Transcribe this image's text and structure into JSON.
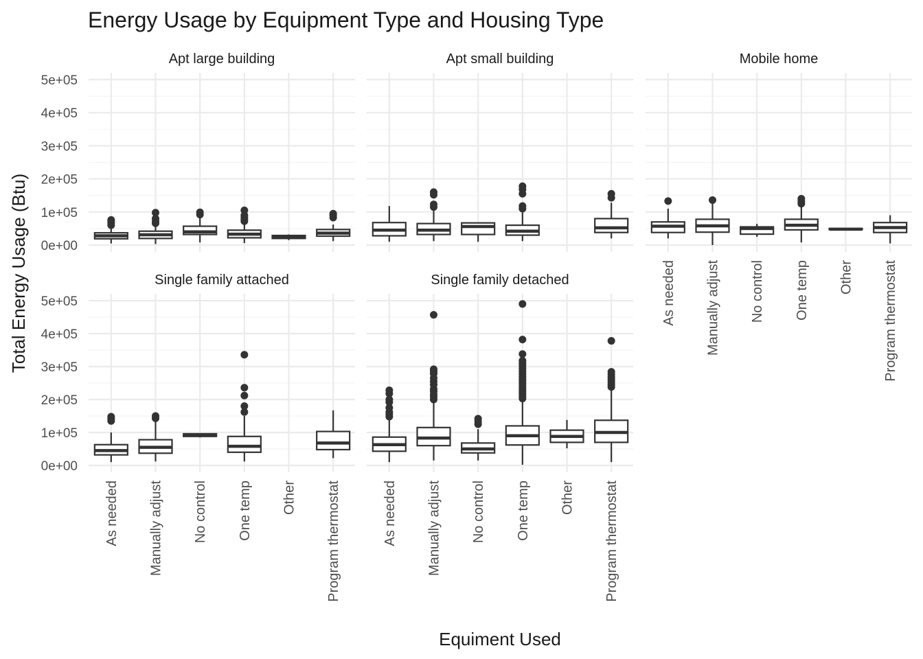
{
  "chart_data": {
    "type": "boxplot",
    "title": "Energy Usage by Equipment Type and Housing Type",
    "xlabel": "Equiment Used",
    "ylabel": "Total Energy Usage (Btu)",
    "ylim": [
      0,
      500000
    ],
    "y_ticks": [
      {
        "value": 0,
        "label": "0e+00"
      },
      {
        "value": 100000,
        "label": "1e+05"
      },
      {
        "value": 200000,
        "label": "2e+05"
      },
      {
        "value": 300000,
        "label": "3e+05"
      },
      {
        "value": 400000,
        "label": "4e+05"
      },
      {
        "value": 500000,
        "label": "5e+05"
      }
    ],
    "categories": [
      "As needed",
      "Manually adjust",
      "No control",
      "One temp",
      "Other",
      "Program thermostat"
    ],
    "grid": true,
    "theme": "minimal",
    "colors": {
      "box_stroke": "#333333",
      "box_fill": "#ffffff",
      "grid_major": "#ebebeb",
      "grid_minor": "#f4f4f4",
      "text": "#1a1a1a",
      "axis_text": "#4d4d4d"
    },
    "facets": [
      {
        "name": "Apt large building",
        "boxes": [
          {
            "category": "As needed",
            "min": 5000,
            "q1": 19000,
            "median": 28000,
            "q3": 37000,
            "max": 53000,
            "outliers": [
              60000,
              66000,
              72000,
              76000
            ]
          },
          {
            "category": "Manually adjust",
            "min": 3000,
            "q1": 20000,
            "median": 31000,
            "q3": 42000,
            "max": 57000,
            "outliers": [
              66000,
              72000,
              80000,
              98000
            ]
          },
          {
            "category": "No control",
            "min": 8000,
            "q1": 32000,
            "median": 40000,
            "q3": 57000,
            "max": 85000,
            "outliers": [
              92000,
              99000
            ]
          },
          {
            "category": "One temp",
            "min": 6000,
            "q1": 22000,
            "median": 33000,
            "q3": 45000,
            "max": 65000,
            "outliers": [
              72000,
              78000,
              84000,
              90000,
              105000
            ]
          },
          {
            "category": "Other",
            "min": 15000,
            "q1": 20000,
            "median": 25000,
            "q3": 29000,
            "max": 32000,
            "outliers": []
          },
          {
            "category": "Program thermostat",
            "min": 12000,
            "q1": 27000,
            "median": 36000,
            "q3": 47000,
            "max": 62000,
            "outliers": [
              83000,
              90000,
              95000
            ]
          }
        ]
      },
      {
        "name": "Apt small building",
        "boxes": [
          {
            "category": "As needed",
            "min": 10000,
            "q1": 28000,
            "median": 45000,
            "q3": 68000,
            "max": 118000,
            "outliers": []
          },
          {
            "category": "Manually adjust",
            "min": 12000,
            "q1": 32000,
            "median": 45000,
            "q3": 65000,
            "max": 108000,
            "outliers": [
              115000,
              123000,
              152000,
              160000
            ]
          },
          {
            "category": "No control",
            "min": 10000,
            "q1": 32000,
            "median": 56000,
            "q3": 67000,
            "max": 68000,
            "outliers": []
          },
          {
            "category": "One temp",
            "min": 12000,
            "q1": 30000,
            "median": 42000,
            "q3": 60000,
            "max": 100000,
            "outliers": [
              110000,
              118000,
              155000,
              168000,
              178000
            ]
          },
          {
            "category": "Other",
            "min": null,
            "q1": null,
            "median": null,
            "q3": null,
            "max": null,
            "outliers": []
          },
          {
            "category": "Program thermostat",
            "min": 20000,
            "q1": 38000,
            "median": 52000,
            "q3": 80000,
            "max": 128000,
            "outliers": [
              143000,
              155000
            ]
          }
        ]
      },
      {
        "name": "Mobile home",
        "boxes": [
          {
            "category": "As needed",
            "min": 20000,
            "q1": 38000,
            "median": 57000,
            "q3": 70000,
            "max": 110000,
            "outliers": [
              133000
            ]
          },
          {
            "category": "Manually adjust",
            "min": 0,
            "q1": 39000,
            "median": 58000,
            "q3": 78000,
            "max": 128000,
            "outliers": [
              136000
            ]
          },
          {
            "category": "No control",
            "min": 25000,
            "q1": 33000,
            "median": 50000,
            "q3": 55000,
            "max": 64000,
            "outliers": []
          },
          {
            "category": "One temp",
            "min": 8000,
            "q1": 46000,
            "median": 60000,
            "q3": 78000,
            "max": 118000,
            "outliers": [
              125000,
              132000,
              140000
            ]
          },
          {
            "category": "Other",
            "min": 46000,
            "q1": 47000,
            "median": 48000,
            "q3": 50000,
            "max": 52000,
            "outliers": []
          },
          {
            "category": "Program thermostat",
            "min": 5000,
            "q1": 38000,
            "median": 53000,
            "q3": 68000,
            "max": 90000,
            "outliers": []
          }
        ]
      },
      {
        "name": "Single family attached",
        "boxes": [
          {
            "category": "As needed",
            "min": 10000,
            "q1": 32000,
            "median": 45000,
            "q3": 63000,
            "max": 100000,
            "outliers": [
              135000,
              142000,
              148000
            ]
          },
          {
            "category": "Manually adjust",
            "min": 12000,
            "q1": 37000,
            "median": 55000,
            "q3": 78000,
            "max": 138000,
            "outliers": [
              143000,
              150000
            ]
          },
          {
            "category": "No control",
            "min": 85000,
            "q1": 88000,
            "median": 92000,
            "q3": 96000,
            "max": 98000,
            "outliers": []
          },
          {
            "category": "One temp",
            "min": 12000,
            "q1": 40000,
            "median": 58000,
            "q3": 88000,
            "max": 150000,
            "outliers": [
              162000,
              180000,
              212000,
              236000,
              336000
            ]
          },
          {
            "category": "Other",
            "min": null,
            "q1": null,
            "median": null,
            "q3": null,
            "max": null,
            "outliers": []
          },
          {
            "category": "Program thermostat",
            "min": 22000,
            "q1": 48000,
            "median": 68000,
            "q3": 103000,
            "max": 167000,
            "outliers": []
          }
        ]
      },
      {
        "name": "Single family detached",
        "boxes": [
          {
            "category": "As needed",
            "min": 10000,
            "q1": 43000,
            "median": 63000,
            "q3": 86000,
            "max": 140000,
            "outliers": [
              148000,
              155000,
              162000,
              175000,
              192000,
              200000,
              218000,
              228000
            ]
          },
          {
            "category": "Manually adjust",
            "min": 15000,
            "q1": 60000,
            "median": 83000,
            "q3": 115000,
            "max": 195000,
            "outliers": [
              200000,
              208000,
              215000,
              225000,
              232000,
              245000,
              255000,
              265000,
              278000,
              285000,
              292000,
              457000
            ]
          },
          {
            "category": "No control",
            "min": 15000,
            "q1": 38000,
            "median": 50000,
            "q3": 68000,
            "max": 110000,
            "outliers": [
              125000,
              133000,
              142000
            ]
          },
          {
            "category": "One temp",
            "min": 2000,
            "q1": 62000,
            "median": 90000,
            "q3": 120000,
            "max": 198000,
            "outliers": [
              203000,
              210000,
              218000,
              225000,
              232000,
              240000,
              248000,
              255000,
              262000,
              270000,
              278000,
              286000,
              294000,
              302000,
              310000,
              318000,
              338000,
              382000,
              490000
            ]
          },
          {
            "category": "Other",
            "min": 52000,
            "q1": 70000,
            "median": 88000,
            "q3": 107000,
            "max": 138000,
            "outliers": []
          },
          {
            "category": "Program thermostat",
            "min": 10000,
            "q1": 70000,
            "median": 100000,
            "q3": 137000,
            "max": 232000,
            "outliers": [
              238000,
              245000,
              252000,
              260000,
              268000,
              276000,
              284000,
              378000
            ]
          }
        ]
      }
    ]
  }
}
